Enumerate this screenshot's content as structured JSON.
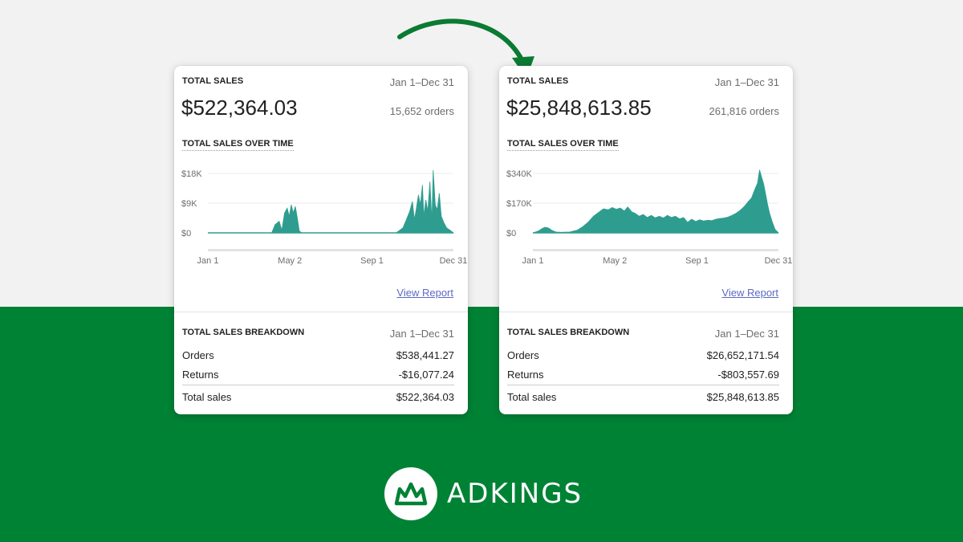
{
  "colors": {
    "brand_green": "#008235",
    "chart_teal": "#2e9d8f",
    "link": "#5c6ac4"
  },
  "brand": {
    "name": "ADKINGS"
  },
  "cards": [
    {
      "title": "TOTAL SALES",
      "date_range": "Jan 1–Dec 31",
      "total_amount": "$522,364.03",
      "orders_count": "15,652 orders",
      "chart_title": "TOTAL SALES OVER TIME",
      "view_report": "View Report",
      "breakdown": {
        "title": "TOTAL SALES BREAKDOWN",
        "date_range": "Jan 1–Dec 31",
        "rows": [
          {
            "label": "Orders",
            "value": "$538,441.27"
          },
          {
            "label": "Returns",
            "value": "-$16,077.24"
          },
          {
            "label": "Total sales",
            "value": "$522,364.03"
          }
        ]
      }
    },
    {
      "title": "TOTAL SALES",
      "date_range": "Jan 1–Dec 31",
      "total_amount": "$25,848,613.85",
      "orders_count": "261,816 orders",
      "chart_title": "TOTAL SALES OVER TIME",
      "view_report": "View Report",
      "breakdown": {
        "title": "TOTAL SALES BREAKDOWN",
        "date_range": "Jan 1–Dec 31",
        "rows": [
          {
            "label": "Orders",
            "value": "$26,652,171.54"
          },
          {
            "label": "Returns",
            "value": "-$803,557.69"
          },
          {
            "label": "Total sales",
            "value": "$25,848,613.85"
          }
        ]
      }
    }
  ],
  "chart_data": [
    {
      "type": "area",
      "title": "TOTAL SALES OVER TIME",
      "y_ticks": [
        "$18K",
        "$9K",
        "$0"
      ],
      "x_ticks": [
        "Jan 1",
        "May 2",
        "Sep 1",
        "Dec 31"
      ],
      "ylim": [
        0,
        18000
      ],
      "x_unit": "day of year",
      "points": [
        [
          0,
          0
        ],
        [
          95,
          0
        ],
        [
          100,
          2500
        ],
        [
          106,
          3500
        ],
        [
          110,
          800
        ],
        [
          114,
          6000
        ],
        [
          118,
          7500
        ],
        [
          121,
          5000
        ],
        [
          124,
          8500
        ],
        [
          127,
          6000
        ],
        [
          130,
          8000
        ],
        [
          133,
          4500
        ],
        [
          136,
          500
        ],
        [
          140,
          0
        ],
        [
          160,
          0
        ],
        [
          165,
          -300
        ],
        [
          200,
          0
        ],
        [
          260,
          0
        ],
        [
          280,
          0
        ],
        [
          290,
          1500
        ],
        [
          296,
          4500
        ],
        [
          300,
          6500
        ],
        [
          304,
          9500
        ],
        [
          307,
          4000
        ],
        [
          310,
          7500
        ],
        [
          313,
          11500
        ],
        [
          316,
          8500
        ],
        [
          319,
          14500
        ],
        [
          321,
          5000
        ],
        [
          324,
          10000
        ],
        [
          327,
          6500
        ],
        [
          330,
          15500
        ],
        [
          333,
          3500
        ],
        [
          335,
          19000
        ],
        [
          338,
          8500
        ],
        [
          341,
          7000
        ],
        [
          344,
          12000
        ],
        [
          347,
          5000
        ],
        [
          351,
          3000
        ],
        [
          355,
          1500
        ],
        [
          360,
          800
        ],
        [
          365,
          0
        ]
      ]
    },
    {
      "type": "area",
      "title": "TOTAL SALES OVER TIME",
      "y_ticks": [
        "$340K",
        "$170K",
        "$0"
      ],
      "x_ticks": [
        "Jan 1",
        "May 2",
        "Sep 1",
        "Dec 31"
      ],
      "ylim": [
        0,
        340000
      ],
      "x_unit": "day of year",
      "points": [
        [
          0,
          0
        ],
        [
          8,
          10000
        ],
        [
          14,
          25000
        ],
        [
          18,
          32000
        ],
        [
          23,
          28000
        ],
        [
          28,
          15000
        ],
        [
          34,
          5000
        ],
        [
          42,
          3000
        ],
        [
          55,
          5000
        ],
        [
          66,
          15000
        ],
        [
          74,
          35000
        ],
        [
          82,
          60000
        ],
        [
          90,
          95000
        ],
        [
          98,
          118000
        ],
        [
          105,
          138000
        ],
        [
          112,
          132000
        ],
        [
          118,
          145000
        ],
        [
          124,
          135000
        ],
        [
          130,
          142000
        ],
        [
          136,
          125000
        ],
        [
          141,
          148000
        ],
        [
          147,
          120000
        ],
        [
          152,
          112000
        ],
        [
          158,
          95000
        ],
        [
          164,
          105000
        ],
        [
          170,
          88000
        ],
        [
          176,
          100000
        ],
        [
          182,
          86000
        ],
        [
          188,
          95000
        ],
        [
          194,
          85000
        ],
        [
          200,
          100000
        ],
        [
          206,
          88000
        ],
        [
          212,
          95000
        ],
        [
          218,
          80000
        ],
        [
          224,
          88000
        ],
        [
          230,
          60000
        ],
        [
          236,
          78000
        ],
        [
          242,
          65000
        ],
        [
          248,
          75000
        ],
        [
          254,
          68000
        ],
        [
          260,
          72000
        ],
        [
          266,
          70000
        ],
        [
          272,
          78000
        ],
        [
          278,
          82000
        ],
        [
          284,
          85000
        ],
        [
          290,
          90000
        ],
        [
          296,
          100000
        ],
        [
          302,
          112000
        ],
        [
          308,
          128000
        ],
        [
          314,
          150000
        ],
        [
          320,
          178000
        ],
        [
          325,
          200000
        ],
        [
          330,
          250000
        ],
        [
          334,
          285000
        ],
        [
          337,
          360000
        ],
        [
          340,
          320000
        ],
        [
          343,
          280000
        ],
        [
          346,
          220000
        ],
        [
          349,
          160000
        ],
        [
          352,
          110000
        ],
        [
          356,
          60000
        ],
        [
          360,
          20000
        ],
        [
          365,
          0
        ]
      ]
    }
  ]
}
